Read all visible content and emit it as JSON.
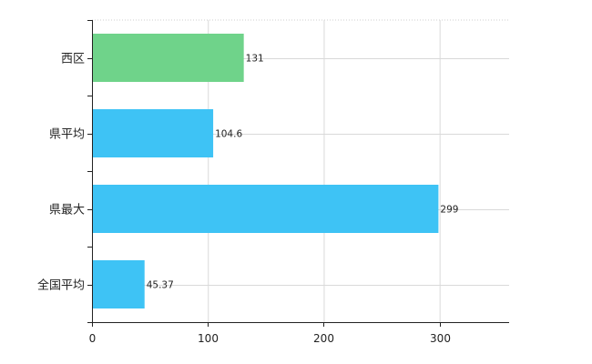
{
  "chart_data": {
    "type": "bar",
    "orientation": "horizontal",
    "categories": [
      "西区",
      "県平均",
      "県最大",
      "全国平均"
    ],
    "values": [
      131,
      104.6,
      299,
      45.37
    ],
    "value_labels": [
      "131",
      "104.6",
      "299",
      "45.37"
    ],
    "bar_colors": [
      "#6fd38a",
      "#3ec3f5",
      "#3ec3f5",
      "#3ec3f5"
    ],
    "xlim": [
      0,
      360
    ],
    "xticks": [
      0,
      100,
      200,
      300
    ],
    "xtick_labels": [
      "0",
      "100",
      "200",
      "300"
    ],
    "grid": true
  }
}
